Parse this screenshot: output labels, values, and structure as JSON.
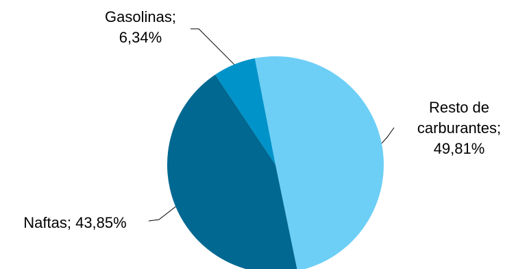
{
  "chart_data": {
    "type": "pie",
    "slices": [
      {
        "name": "Resto de carburantes",
        "value": 49.81,
        "color": "#6dcff6",
        "label_lines": [
          "Resto de",
          "carburantes;",
          "49,81%"
        ]
      },
      {
        "name": "Naftas",
        "value": 43.85,
        "color": "#006891",
        "label_lines": [
          "Naftas; 43,85%"
        ]
      },
      {
        "name": "Gasolinas",
        "value": 6.34,
        "color": "#0093c9",
        "label_lines": [
          "Gasolinas;",
          "6,34%"
        ]
      }
    ],
    "start_angle_deg": 11,
    "direction": "clockwise",
    "legend": "none"
  }
}
